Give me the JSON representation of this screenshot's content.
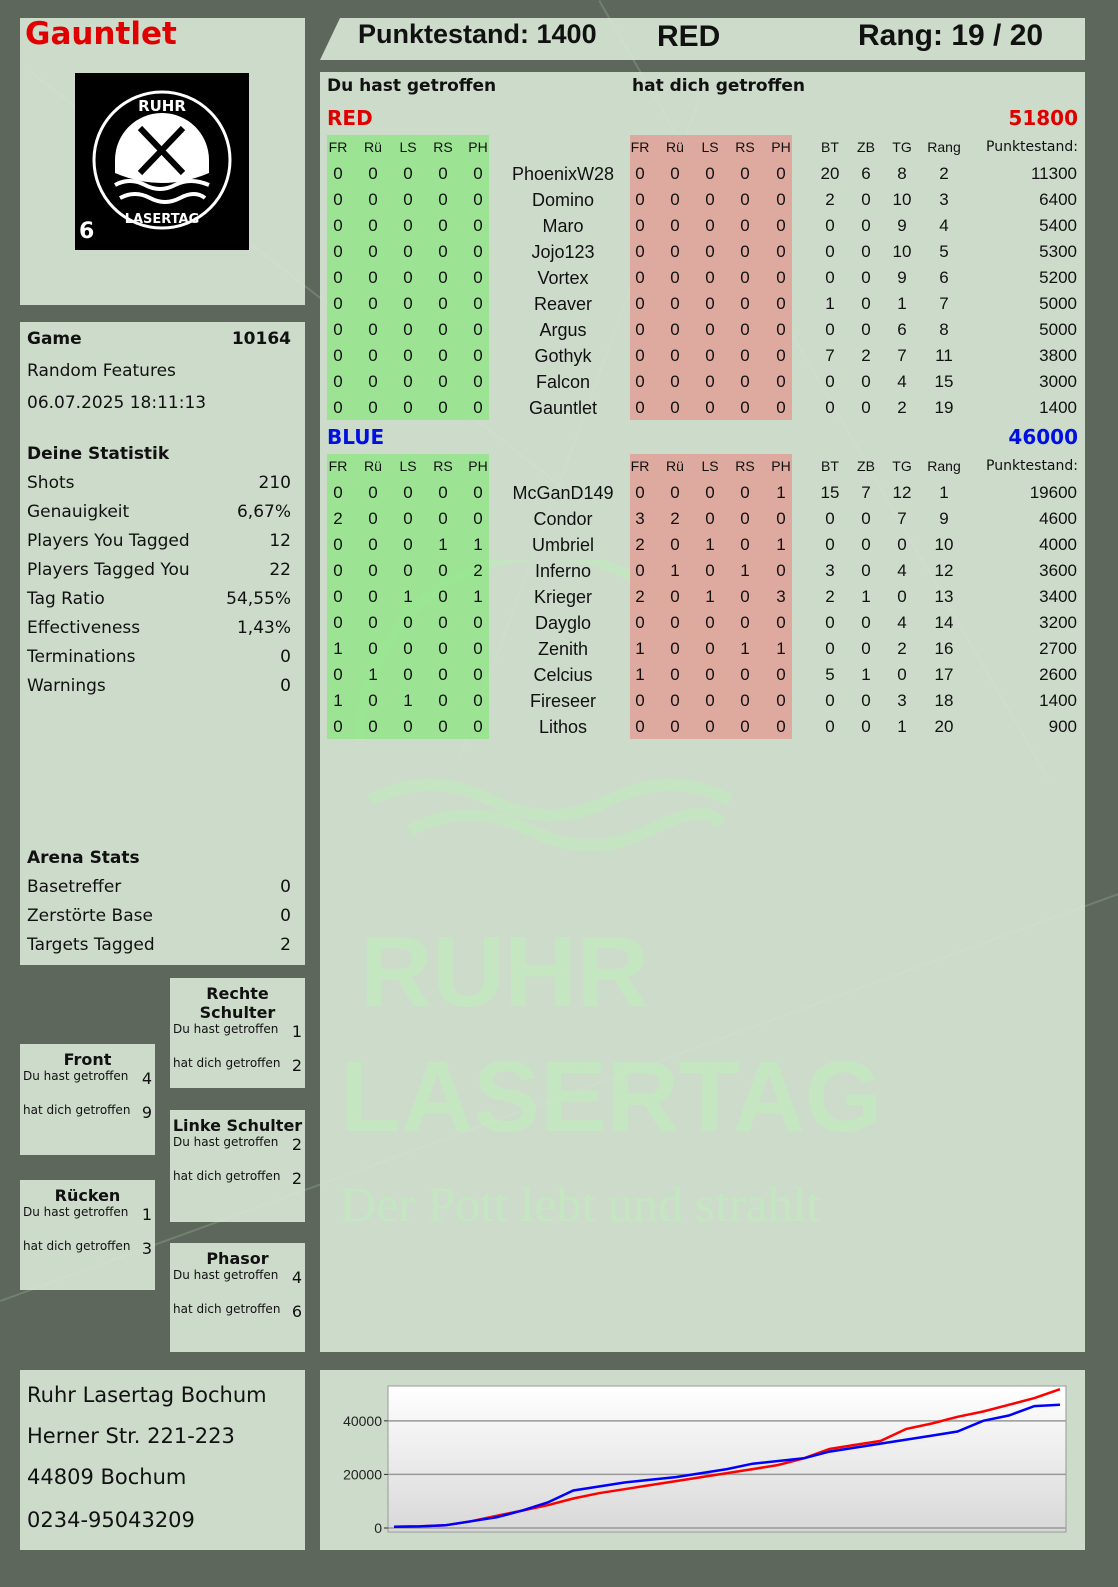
{
  "player": {
    "name": "Gauntlet",
    "logo_badge": "6",
    "logo_text": "RUHR LASERTAG"
  },
  "header": {
    "score_label": "Punktestand: 1400",
    "team": "RED",
    "rank_label": "Rang: 19 / 20"
  },
  "game": {
    "label": "Game",
    "id": "10164",
    "mode": "Random Features",
    "datetime": "06.07.2025 18:11:13"
  },
  "stats": {
    "title": "Deine Statistik",
    "items": [
      {
        "label": "Shots",
        "value": "210"
      },
      {
        "label": "Genauigkeit",
        "value": "6,67%"
      },
      {
        "label": "Players You Tagged",
        "value": "12"
      },
      {
        "label": "Players Tagged You",
        "value": "22"
      },
      {
        "label": "Tag Ratio",
        "value": "54,55%"
      },
      {
        "label": "Effectiveness",
        "value": "1,43%"
      },
      {
        "label": "Terminations",
        "value": "0"
      },
      {
        "label": "Warnings",
        "value": "0"
      }
    ]
  },
  "arena": {
    "title": "Arena Stats",
    "items": [
      {
        "label": "Basetreffer",
        "value": "0"
      },
      {
        "label": "Zerstörte Base",
        "value": "0"
      },
      {
        "label": "Targets Tagged",
        "value": "2"
      }
    ]
  },
  "body_parts": [
    {
      "title": "Rechte Schulter",
      "hit_label": "Du hast getroffen",
      "hit": "1",
      "got_label": "hat dich getroffen",
      "got": "2"
    },
    {
      "title": "Front",
      "hit_label": "Du hast getroffen",
      "hit": "4",
      "got_label": "hat dich getroffen",
      "got": "9"
    },
    {
      "title": "Linke Schulter",
      "hit_label": "Du hast getroffen",
      "hit": "2",
      "got_label": "hat dich getroffen",
      "got": "2"
    },
    {
      "title": "Rücken",
      "hit_label": "Du hast getroffen",
      "hit": "1",
      "got_label": "hat dich getroffen",
      "got": "3"
    },
    {
      "title": "Phasor",
      "hit_label": "Du hast getroffen",
      "hit": "4",
      "got_label": "hat dich getroffen",
      "got": "6"
    }
  ],
  "address": [
    "Ruhr Lasertag Bochum",
    "Herner Str. 221-223",
    "44809 Bochum",
    "0234-95043209"
  ],
  "table": {
    "you_hit_label": "Du hast getroffen",
    "hit_you_label": "hat dich getroffen",
    "zone_headers": [
      "FR",
      "Rü",
      "LS",
      "RS",
      "PH"
    ],
    "stat_headers": [
      "BT",
      "ZB",
      "TG",
      "Rang"
    ],
    "score_header": "Punktestand:",
    "teams": [
      {
        "name": "RED",
        "total": "51800",
        "color": "#e00000",
        "players": [
          {
            "name": "PhoenixW28",
            "hit": [
              0,
              0,
              0,
              0,
              0
            ],
            "got": [
              0,
              0,
              0,
              0,
              0
            ],
            "bt": 20,
            "zb": 6,
            "tg": 8,
            "rang": 2,
            "score": 11300
          },
          {
            "name": "Domino",
            "hit": [
              0,
              0,
              0,
              0,
              0
            ],
            "got": [
              0,
              0,
              0,
              0,
              0
            ],
            "bt": 2,
            "zb": 0,
            "tg": 10,
            "rang": 3,
            "score": 6400
          },
          {
            "name": "Maro",
            "hit": [
              0,
              0,
              0,
              0,
              0
            ],
            "got": [
              0,
              0,
              0,
              0,
              0
            ],
            "bt": 0,
            "zb": 0,
            "tg": 9,
            "rang": 4,
            "score": 5400
          },
          {
            "name": "Jojo123",
            "hit": [
              0,
              0,
              0,
              0,
              0
            ],
            "got": [
              0,
              0,
              0,
              0,
              0
            ],
            "bt": 0,
            "zb": 0,
            "tg": 10,
            "rang": 5,
            "score": 5300
          },
          {
            "name": "Vortex",
            "hit": [
              0,
              0,
              0,
              0,
              0
            ],
            "got": [
              0,
              0,
              0,
              0,
              0
            ],
            "bt": 0,
            "zb": 0,
            "tg": 9,
            "rang": 6,
            "score": 5200
          },
          {
            "name": "Reaver",
            "hit": [
              0,
              0,
              0,
              0,
              0
            ],
            "got": [
              0,
              0,
              0,
              0,
              0
            ],
            "bt": 1,
            "zb": 0,
            "tg": 1,
            "rang": 7,
            "score": 5000
          },
          {
            "name": "Argus",
            "hit": [
              0,
              0,
              0,
              0,
              0
            ],
            "got": [
              0,
              0,
              0,
              0,
              0
            ],
            "bt": 0,
            "zb": 0,
            "tg": 6,
            "rang": 8,
            "score": 5000
          },
          {
            "name": "Gothyk",
            "hit": [
              0,
              0,
              0,
              0,
              0
            ],
            "got": [
              0,
              0,
              0,
              0,
              0
            ],
            "bt": 7,
            "zb": 2,
            "tg": 7,
            "rang": 11,
            "score": 3800
          },
          {
            "name": "Falcon",
            "hit": [
              0,
              0,
              0,
              0,
              0
            ],
            "got": [
              0,
              0,
              0,
              0,
              0
            ],
            "bt": 0,
            "zb": 0,
            "tg": 4,
            "rang": 15,
            "score": 3000
          },
          {
            "name": "Gauntlet",
            "hit": [
              0,
              0,
              0,
              0,
              0
            ],
            "got": [
              0,
              0,
              0,
              0,
              0
            ],
            "bt": 0,
            "zb": 0,
            "tg": 2,
            "rang": 19,
            "score": 1400
          }
        ]
      },
      {
        "name": "BLUE",
        "total": "46000",
        "color": "#0010e0",
        "players": [
          {
            "name": "McGanD149",
            "hit": [
              0,
              0,
              0,
              0,
              0
            ],
            "got": [
              0,
              0,
              0,
              0,
              1
            ],
            "bt": 15,
            "zb": 7,
            "tg": 12,
            "rang": 1,
            "score": 19600
          },
          {
            "name": "Condor",
            "hit": [
              2,
              0,
              0,
              0,
              0
            ],
            "got": [
              3,
              2,
              0,
              0,
              0
            ],
            "bt": 0,
            "zb": 0,
            "tg": 7,
            "rang": 9,
            "score": 4600
          },
          {
            "name": "Umbriel",
            "hit": [
              0,
              0,
              0,
              1,
              1
            ],
            "got": [
              2,
              0,
              1,
              0,
              1
            ],
            "bt": 0,
            "zb": 0,
            "tg": 0,
            "rang": 10,
            "score": 4000
          },
          {
            "name": "Inferno",
            "hit": [
              0,
              0,
              0,
              0,
              2
            ],
            "got": [
              0,
              1,
              0,
              1,
              0
            ],
            "bt": 3,
            "zb": 0,
            "tg": 4,
            "rang": 12,
            "score": 3600
          },
          {
            "name": "Krieger",
            "hit": [
              0,
              0,
              1,
              0,
              1
            ],
            "got": [
              2,
              0,
              1,
              0,
              3
            ],
            "bt": 2,
            "zb": 1,
            "tg": 0,
            "rang": 13,
            "score": 3400
          },
          {
            "name": "Dayglo",
            "hit": [
              0,
              0,
              0,
              0,
              0
            ],
            "got": [
              0,
              0,
              0,
              0,
              0
            ],
            "bt": 0,
            "zb": 0,
            "tg": 4,
            "rang": 14,
            "score": 3200
          },
          {
            "name": "Zenith",
            "hit": [
              1,
              0,
              0,
              0,
              0
            ],
            "got": [
              1,
              0,
              0,
              1,
              1
            ],
            "bt": 0,
            "zb": 0,
            "tg": 2,
            "rang": 16,
            "score": 2700
          },
          {
            "name": "Celcius",
            "hit": [
              0,
              1,
              0,
              0,
              0
            ],
            "got": [
              1,
              0,
              0,
              0,
              0
            ],
            "bt": 5,
            "zb": 1,
            "tg": 0,
            "rang": 17,
            "score": 2600
          },
          {
            "name": "Fireseer",
            "hit": [
              1,
              0,
              1,
              0,
              0
            ],
            "got": [
              0,
              0,
              0,
              0,
              0
            ],
            "bt": 0,
            "zb": 0,
            "tg": 3,
            "rang": 18,
            "score": 1400
          },
          {
            "name": "Lithos",
            "hit": [
              0,
              0,
              0,
              0,
              0
            ],
            "got": [
              0,
              0,
              0,
              0,
              0
            ],
            "bt": 0,
            "zb": 0,
            "tg": 1,
            "rang": 20,
            "score": 900
          }
        ]
      }
    ]
  },
  "watermark": {
    "line1": "RUHR",
    "line2": "LASERTAG",
    "line3": "Der Pott lebt und strahlt"
  },
  "chart_data": {
    "type": "line",
    "ylim": [
      0,
      53000
    ],
    "yticks": [
      "0",
      "20000",
      "40000"
    ],
    "grid": true,
    "series": [
      {
        "color": "#ff0000",
        "values": [
          500,
          600,
          1000,
          2500,
          4500,
          6500,
          8500,
          11000,
          13000,
          14500,
          16000,
          17500,
          19000,
          20500,
          22000,
          23500,
          26000,
          29500,
          31000,
          32500,
          37000,
          39000,
          41500,
          43500,
          46000,
          48500,
          51800
        ]
      },
      {
        "color": "#0000ff",
        "values": [
          500,
          600,
          1000,
          2500,
          4000,
          6500,
          9500,
          14000,
          15500,
          17000,
          18000,
          19000,
          20500,
          22000,
          24000,
          25000,
          26000,
          28500,
          30000,
          31500,
          33000,
          34500,
          36000,
          40000,
          42000,
          45500,
          46000
        ]
      }
    ]
  }
}
